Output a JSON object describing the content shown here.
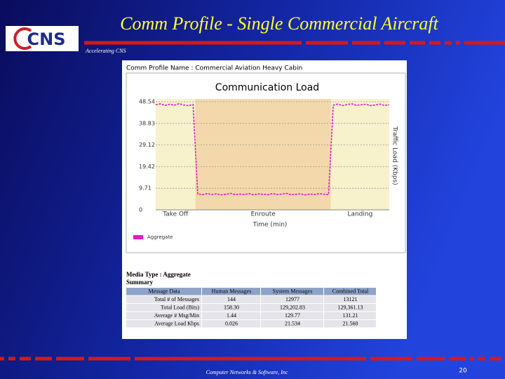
{
  "header": {
    "title": "Comm Profile - Single Commercial Aircraft",
    "tagline": "Accelerating CNS",
    "logo": "CNS"
  },
  "panel": {
    "profile_name": "Comm Profile Name : Commercial Aviation Heavy Cabin",
    "media_type": "Media Type : Aggregate",
    "summary": "Summary"
  },
  "chart_data": {
    "type": "line",
    "title": "Communication Load",
    "x_label": "Time (min)",
    "y_label": "Traffic Load (Kbps)",
    "xlim": [
      0,
      100
    ],
    "ylim": [
      0,
      48.54
    ],
    "yticks": [
      0,
      9.71,
      19.42,
      29.12,
      38.83,
      48.54
    ],
    "grid": true,
    "phases": [
      {
        "label": "Take Off",
        "start": 0,
        "end": 17,
        "color": "#f7f1cc"
      },
      {
        "label": "Enroute",
        "start": 17,
        "end": 75,
        "color": "#f3d8ab"
      },
      {
        "label": "Landing",
        "start": 75,
        "end": 100,
        "color": "#f7f1cc"
      }
    ],
    "x": [
      0,
      2,
      4,
      6,
      8,
      10,
      12,
      14,
      16,
      18,
      20,
      22,
      24,
      26,
      28,
      30,
      32,
      34,
      36,
      38,
      40,
      42,
      44,
      46,
      48,
      50,
      52,
      54,
      56,
      58,
      60,
      62,
      64,
      66,
      68,
      70,
      72,
      74,
      76,
      78,
      80,
      82,
      84,
      86,
      88,
      90,
      92,
      94,
      96,
      98,
      100
    ],
    "series": [
      {
        "name": "Aggregate",
        "color": "#e01cc4",
        "values": [
          47.2,
          47.6,
          46.9,
          47.4,
          47.0,
          47.7,
          47.1,
          46.8,
          47.3,
          7.1,
          6.8,
          7.3,
          6.9,
          7.2,
          6.7,
          7.0,
          7.4,
          6.8,
          7.1,
          6.9,
          7.3,
          6.7,
          7.2,
          7.0,
          6.8,
          7.3,
          6.9,
          7.1,
          7.4,
          6.8,
          7.0,
          7.2,
          6.7,
          7.1,
          6.9,
          7.3,
          7.0,
          6.8,
          47.0,
          47.5,
          46.8,
          47.3,
          47.6,
          46.9,
          47.2,
          47.4,
          46.8,
          47.1,
          47.5,
          46.9,
          47.2
        ]
      }
    ]
  },
  "table": {
    "columns": [
      "Message Data",
      "Human Messages",
      "System Messages",
      "Combined Total"
    ],
    "rows": [
      [
        "Total # of Messages",
        "144",
        "12977",
        "13121"
      ],
      [
        "Total Load (Bits)",
        "158.30",
        "129,202.83",
        "129,361.13"
      ],
      [
        "Average # Msg/Min",
        "1.44",
        "129.77",
        "131.21"
      ],
      [
        "Average Load Kbps",
        "0.026",
        "21.534",
        "21.560"
      ]
    ]
  },
  "footer": {
    "company": "Computer Networks & Software, Inc",
    "page": "20"
  }
}
